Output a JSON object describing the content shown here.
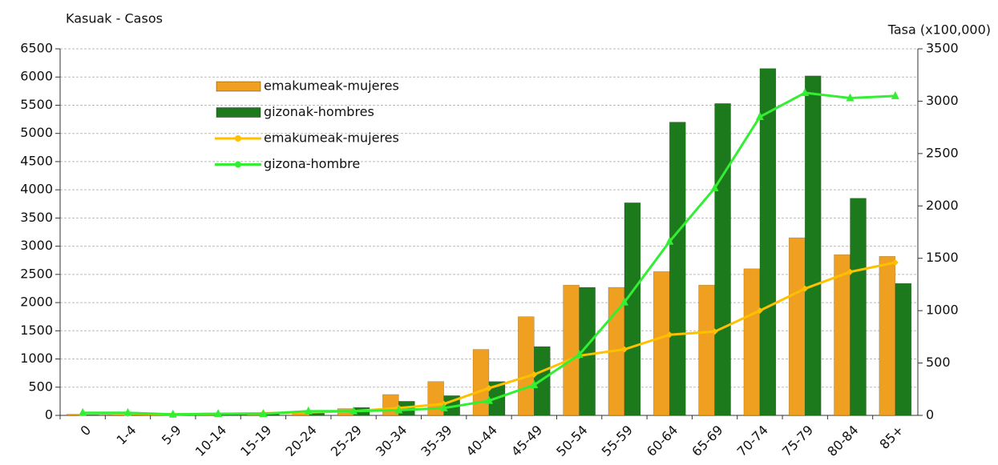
{
  "chart_data": {
    "type": "bar",
    "y_label": "Kasuak - Casos",
    "y2_label": "Tasa (x100,000)",
    "categories": [
      "0",
      "1-4",
      "5-9",
      "10-14",
      "15-19",
      "20-24",
      "25-29",
      "30-34",
      "35-39",
      "40-44",
      "45-49",
      "50-54",
      "55-59",
      "60-64",
      "65-69",
      "70-74",
      "75-79",
      "80-84",
      "85+"
    ],
    "series": [
      {
        "name": "emakumeak-mujeres",
        "type": "bar",
        "color": "#f0a020",
        "values": [
          20,
          10,
          5,
          10,
          20,
          60,
          120,
          370,
          600,
          1170,
          1750,
          2310,
          2270,
          2550,
          2310,
          2600,
          3150,
          2850,
          2820
        ]
      },
      {
        "name": "gizonak-hombres",
        "type": "bar",
        "color": "#1c7a1c",
        "values": [
          10,
          10,
          5,
          10,
          20,
          50,
          140,
          250,
          350,
          600,
          1220,
          2270,
          3770,
          5200,
          5530,
          6150,
          6020,
          3850,
          2340
        ]
      },
      {
        "name": "emakumeak-mujeres",
        "type": "line",
        "axis": "y2",
        "color": "#ffc000",
        "values": [
          20,
          15,
          10,
          15,
          20,
          30,
          40,
          70,
          110,
          260,
          390,
          570,
          630,
          770,
          800,
          1000,
          1210,
          1370,
          1460
        ]
      },
      {
        "name": "gizona-hombre",
        "type": "line",
        "axis": "y2",
        "color": "#33ee33",
        "values": [
          25,
          25,
          10,
          15,
          15,
          40,
          40,
          50,
          70,
          140,
          290,
          580,
          1080,
          1660,
          2170,
          2850,
          3080,
          3030,
          3050
        ]
      }
    ],
    "ylim": [
      0,
      6500
    ],
    "yticks": [
      0,
      500,
      1000,
      1500,
      2000,
      2500,
      3000,
      3500,
      4000,
      4500,
      5000,
      5500,
      6000,
      6500
    ],
    "y2lim": [
      0,
      3500
    ],
    "y2ticks": [
      0,
      500,
      1000,
      1500,
      2000,
      2500,
      3000,
      3500
    ],
    "grid": true
  }
}
